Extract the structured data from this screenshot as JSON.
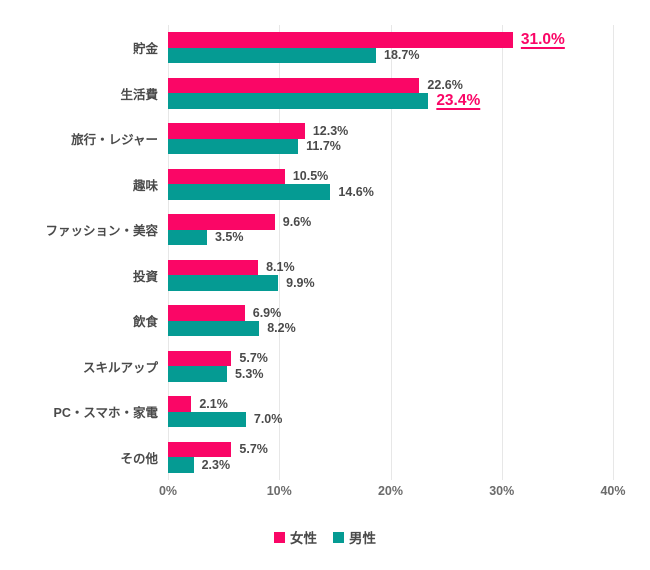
{
  "chart_data": {
    "type": "bar",
    "orientation": "horizontal",
    "title": "",
    "categories": [
      "貯金",
      "生活費",
      "旅行・レジャー",
      "趣味",
      "ファッション・美容",
      "投資",
      "飲食",
      "スキルアップ",
      "PC・スマホ・家電",
      "その他"
    ],
    "series": [
      {
        "name": "女性",
        "color": "#FA0666",
        "values": [
          31.0,
          22.6,
          12.3,
          10.5,
          9.6,
          8.1,
          6.9,
          5.7,
          2.1,
          5.7
        ]
      },
      {
        "name": "男性",
        "color": "#059B93",
        "values": [
          18.7,
          23.4,
          11.7,
          14.6,
          3.5,
          9.9,
          8.2,
          5.3,
          7.0,
          2.3
        ]
      }
    ],
    "value_labels": [
      [
        "31.0%",
        "22.6%",
        "12.3%",
        "10.5%",
        "9.6%",
        "8.1%",
        "6.9%",
        "5.7%",
        "2.1%",
        "5.7%"
      ],
      [
        "18.7%",
        "23.4%",
        "11.7%",
        "14.6%",
        "3.5%",
        "9.9%",
        "8.2%",
        "5.3%",
        "7.0%",
        "2.3%"
      ]
    ],
    "highlighted_labels": [
      {
        "category_index": 0,
        "series_index": 0,
        "text": "31.0%"
      },
      {
        "category_index": 1,
        "series_index": 1,
        "text": "23.4%"
      }
    ],
    "xlim": [
      0,
      40
    ],
    "x_ticks": [
      "0%",
      "10%",
      "20%",
      "30%",
      "40%"
    ],
    "grid": true,
    "legend_position": "bottom",
    "legend": [
      "女性",
      "男性"
    ]
  },
  "colors": {
    "female_bar": "#FA0666",
    "male_bar": "#059B93",
    "highlight_text": "#FA0666",
    "label_text": "#4a4a4a",
    "tick_text": "#6b6b6b",
    "gridline": "#e7e7e7",
    "background": "#ffffff"
  }
}
